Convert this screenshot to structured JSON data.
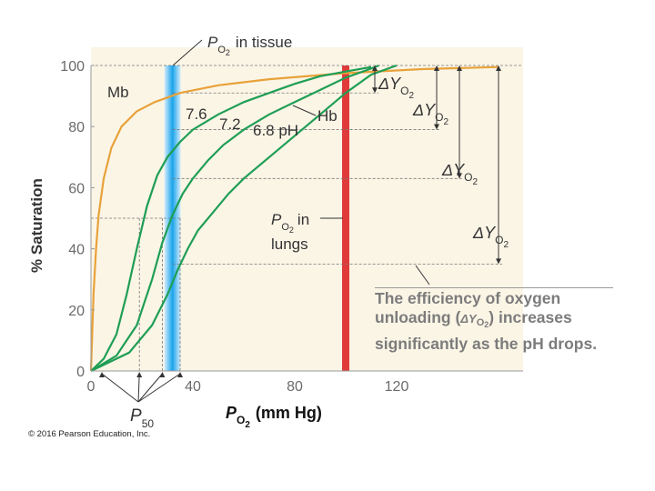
{
  "chart_data": {
    "type": "line",
    "title": "",
    "xlabel": "P",
    "xlabel_sub": "O",
    "xlabel_sub2": "2",
    "xlabel_unit": "(mm Hg)",
    "ylabel": "% Saturation",
    "xlim": [
      0,
      160
    ],
    "ylim": [
      0,
      100
    ],
    "x_ticks": [
      0,
      40,
      80,
      120
    ],
    "y_ticks": [
      0,
      20,
      40,
      60,
      80,
      100
    ],
    "grid": false,
    "series": [
      {
        "name": "Mb",
        "color": "#e8a23a",
        "points": [
          [
            0,
            0
          ],
          [
            1,
            25
          ],
          [
            2,
            40
          ],
          [
            3,
            51
          ],
          [
            5,
            63
          ],
          [
            8,
            73
          ],
          [
            12,
            80
          ],
          [
            18,
            85
          ],
          [
            25,
            88
          ],
          [
            35,
            91
          ],
          [
            50,
            93.5
          ],
          [
            70,
            95.5
          ],
          [
            100,
            97.5
          ],
          [
            130,
            98.8
          ],
          [
            160,
            99.5
          ]
        ]
      },
      {
        "name": "7.6",
        "color": "#1f9e55",
        "points": [
          [
            0,
            0
          ],
          [
            5,
            4
          ],
          [
            10,
            12
          ],
          [
            14,
            25
          ],
          [
            18,
            40
          ],
          [
            22,
            54
          ],
          [
            26,
            64
          ],
          [
            30,
            70
          ],
          [
            35,
            75
          ],
          [
            40,
            79
          ],
          [
            50,
            84
          ],
          [
            60,
            88
          ],
          [
            70,
            91
          ],
          [
            80,
            94
          ],
          [
            90,
            96.5
          ],
          [
            100,
            98
          ],
          [
            110,
            99.5
          ]
        ]
      },
      {
        "name": "7.2",
        "color": "#1f9e55",
        "points": [
          [
            0,
            0
          ],
          [
            10,
            5
          ],
          [
            18,
            15
          ],
          [
            24,
            30
          ],
          [
            28,
            42
          ],
          [
            32,
            51
          ],
          [
            36,
            58
          ],
          [
            40,
            63
          ],
          [
            46,
            69
          ],
          [
            52,
            74
          ],
          [
            60,
            79
          ],
          [
            70,
            84
          ],
          [
            80,
            88
          ],
          [
            90,
            92
          ],
          [
            100,
            96
          ],
          [
            110,
            99
          ],
          [
            113,
            100
          ]
        ]
      },
      {
        "name": "6.8 pH",
        "color": "#1f9e55",
        "points": [
          [
            0,
            0
          ],
          [
            15,
            6
          ],
          [
            24,
            15
          ],
          [
            30,
            25
          ],
          [
            34,
            33
          ],
          [
            38,
            40
          ],
          [
            42,
            46
          ],
          [
            48,
            52
          ],
          [
            54,
            58
          ],
          [
            60,
            63
          ],
          [
            70,
            70
          ],
          [
            80,
            77
          ],
          [
            90,
            84
          ],
          [
            100,
            91
          ],
          [
            110,
            97
          ],
          [
            120,
            100
          ]
        ]
      }
    ],
    "bands": [
      {
        "name": "tissue",
        "x": 32,
        "color": "#2aa7e6"
      },
      {
        "name": "lungs",
        "x": 100,
        "color": "#e23b3b"
      }
    ],
    "p50_values": [
      19,
      28,
      35
    ]
  },
  "annotations": {
    "tissue_P": "P",
    "tissue_sub": "O",
    "tissue_sub2": "2",
    "tissue_text": "in tissue",
    "lungs_P": "P",
    "lungs_sub": "O",
    "lungs_sub2": "2",
    "lungs_text1": "in",
    "lungs_text2": "lungs",
    "mb_label": "Mb",
    "hb_label": "Hb",
    "ph76": "7.6",
    "ph72": "7.2",
    "ph68": "6.8 pH",
    "p50_P": "P",
    "p50_sub": "50",
    "delta_Y": "ΔY",
    "delta_sub": "O",
    "delta_sub2": "2"
  },
  "note": {
    "line1": "The efficiency of oxygen",
    "line2_a": "unloading (",
    "line2_sym": "ΔY",
    "line2_sub": "O",
    "line2_sub2": "2",
    "line2_b": ") increases",
    "line3": "significantly as the pH drops."
  },
  "copyright": "© 2016 Pearson Education, Inc."
}
